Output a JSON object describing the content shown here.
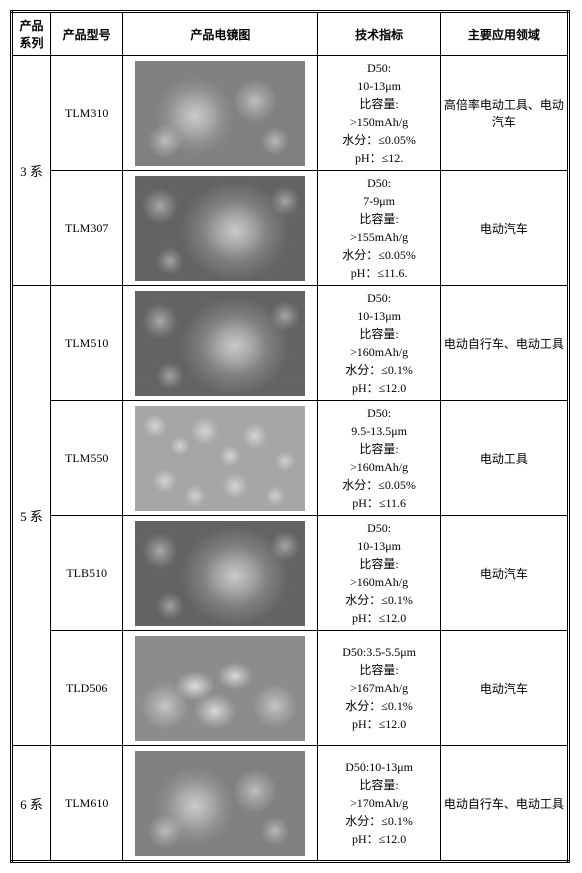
{
  "headers": {
    "series": "产品\n系列",
    "model": "产品型号",
    "image": "产品电镜图",
    "spec": "技术指标",
    "application": "主要应用领域"
  },
  "groups": [
    {
      "series": "3 系",
      "rows": [
        {
          "model": "TLM310",
          "img_variant": "",
          "specs": [
            "D50:",
            "10-13μm",
            "比容量:",
            ">150mAh/g",
            "水分：≤0.05%",
            "pH：≤12."
          ],
          "application": "高倍率电动工具、电动汽车"
        },
        {
          "model": "TLM307",
          "img_variant": "v2",
          "specs": [
            "D50:",
            "7-9μm",
            "比容量:",
            ">155mAh/g",
            "水分：≤0.05%",
            "pH：≤11.6."
          ],
          "application": "电动汽车"
        }
      ]
    },
    {
      "series": "5 系",
      "rows": [
        {
          "model": "TLM510",
          "img_variant": "v2",
          "specs": [
            "D50:",
            "10-13μm",
            "比容量:",
            ">160mAh/g",
            "水分：≤0.1%",
            "pH：≤12.0"
          ],
          "application": "电动自行车、电动工具"
        },
        {
          "model": "TLM550",
          "img_variant": "v3",
          "specs": [
            "D50:",
            "9.5-13.5μm",
            "比容量:",
            ">160mAh/g",
            "水分：≤0.05%",
            "pH：≤11.6"
          ],
          "application": "电动工具"
        },
        {
          "model": "TLB510",
          "img_variant": "v2",
          "specs": [
            "D50:",
            "10-13μm",
            "比容量:",
            ">160mAh/g",
            "水分：≤0.1%",
            "pH：≤12.0"
          ],
          "application": "电动汽车"
        },
        {
          "model": "TLD506",
          "img_variant": "v4",
          "specs": [
            "D50:3.5-5.5μm",
            "比容量:",
            ">167mAh/g",
            "水分：≤0.1%",
            "pH：≤12.0"
          ],
          "application": "电动汽车"
        }
      ]
    },
    {
      "series": "6 系",
      "rows": [
        {
          "model": "TLM610",
          "img_variant": "",
          "specs": [
            "D50:10-13μm",
            "比容量:",
            ">170mAh/g",
            "水分：≤0.1%",
            "pH：≤12.0"
          ],
          "application": "电动自行车、电动工具"
        }
      ]
    }
  ]
}
